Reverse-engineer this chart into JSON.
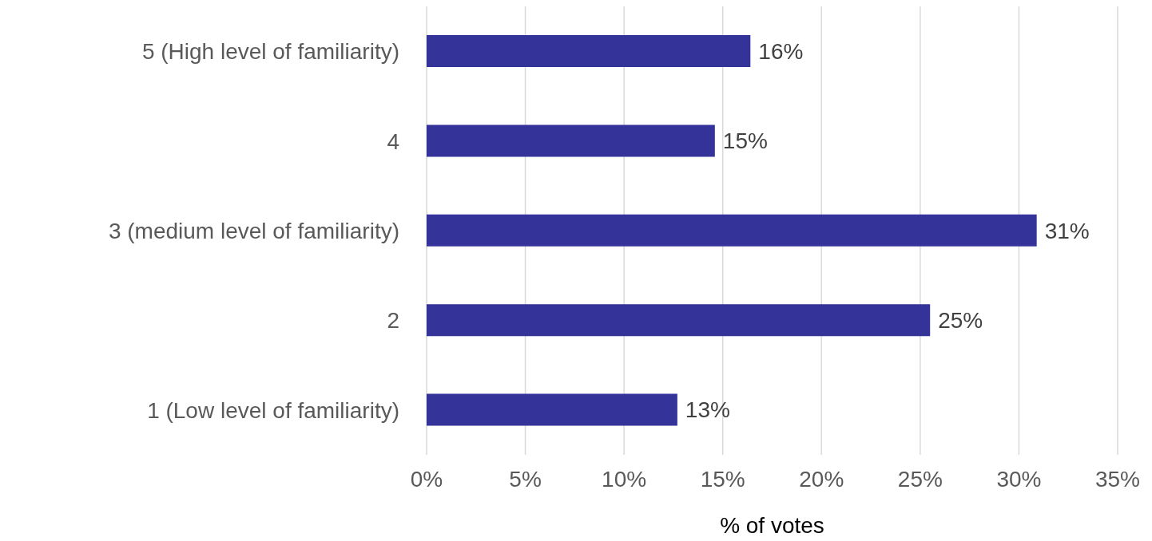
{
  "chart_data": {
    "type": "bar",
    "orientation": "horizontal",
    "xlabel": "% of votes",
    "categories": [
      "5 (High level of familiarity)",
      "4",
      "3 (medium level of familiarity)",
      "2",
      "1 (Low level of familiarity)"
    ],
    "values": [
      16.4,
      14.6,
      30.9,
      25.5,
      12.7
    ],
    "value_labels": [
      "16%",
      "15%",
      "31%",
      "25%",
      "13%"
    ],
    "color": "#333399",
    "xlim": [
      0,
      35
    ],
    "xticks": [
      {
        "value": 0,
        "label": "0%"
      },
      {
        "value": 5,
        "label": "5%"
      },
      {
        "value": 10,
        "label": "10%"
      },
      {
        "value": 15,
        "label": "15%"
      },
      {
        "value": 20,
        "label": "20%"
      },
      {
        "value": 25,
        "label": "25%"
      },
      {
        "value": 30,
        "label": "30%"
      },
      {
        "value": 35,
        "label": "35%"
      }
    ],
    "grid": "x"
  }
}
